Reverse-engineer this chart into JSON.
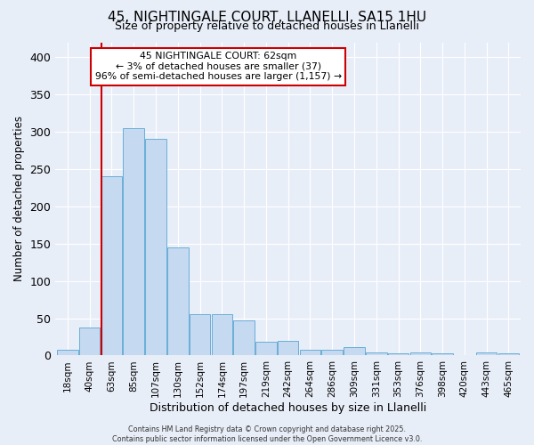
{
  "title_line1": "45, NIGHTINGALE COURT, LLANELLI, SA15 1HU",
  "title_line2": "Size of property relative to detached houses in Llanelli",
  "xlabel": "Distribution of detached houses by size in Llanelli",
  "ylabel": "Number of detached properties",
  "bar_labels": [
    "18sqm",
    "40sqm",
    "63sqm",
    "85sqm",
    "107sqm",
    "130sqm",
    "152sqm",
    "174sqm",
    "197sqm",
    "219sqm",
    "242sqm",
    "264sqm",
    "286sqm",
    "309sqm",
    "331sqm",
    "353sqm",
    "376sqm",
    "398sqm",
    "420sqm",
    "443sqm",
    "465sqm"
  ],
  "bar_values": [
    8,
    38,
    240,
    305,
    290,
    145,
    55,
    55,
    47,
    18,
    20,
    8,
    8,
    11,
    4,
    3,
    4,
    3,
    1,
    4,
    3
  ],
  "bar_color": "#c5d9f0",
  "bar_edge_color": "#6aaed6",
  "marker_index": 2,
  "marker_color": "#cc0000",
  "annotation_title": "45 NIGHTINGALE COURT: 62sqm",
  "annotation_line1": "← 3% of detached houses are smaller (37)",
  "annotation_line2": "96% of semi-detached houses are larger (1,157) →",
  "annotation_box_color": "#ffffff",
  "annotation_box_edge": "#cc0000",
  "ylim_max": 420,
  "background_color": "#e8eef8",
  "grid_color": "#ffffff",
  "footer_line1": "Contains HM Land Registry data © Crown copyright and database right 2025.",
  "footer_line2": "Contains public sector information licensed under the Open Government Licence v3.0."
}
